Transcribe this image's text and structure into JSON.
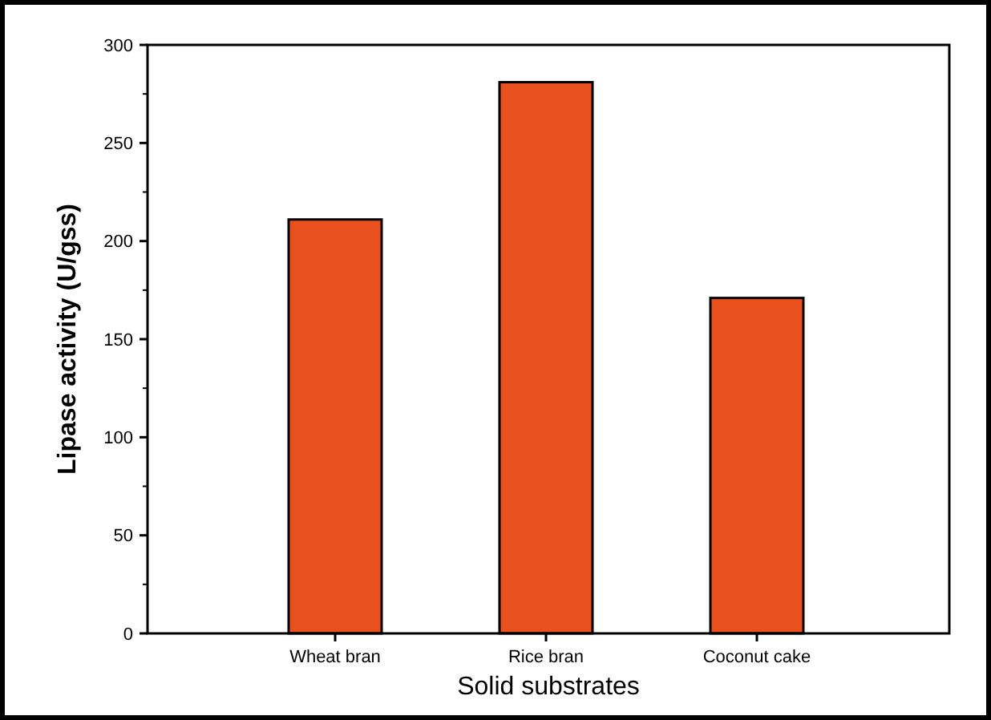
{
  "chart_data": {
    "type": "bar",
    "xlabel": "Solid substrates",
    "ylabel": "Lipase activity (U/gss)",
    "categories": [
      "Wheat bran",
      "Rice bran",
      "Coconut cake"
    ],
    "values": [
      211,
      281,
      171
    ],
    "color": "#e8501e",
    "ylim": [
      0,
      300
    ],
    "yticks": [
      0,
      50,
      100,
      150,
      200,
      250,
      300
    ],
    "grid": false
  }
}
